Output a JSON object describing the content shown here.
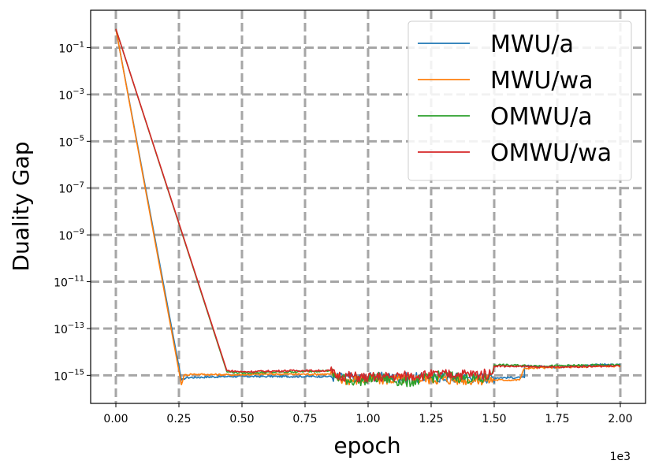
{
  "chart_data": {
    "type": "line",
    "xlabel": "epoch",
    "ylabel": "Duality Gap",
    "x_offset_label": "1e3",
    "x_scale_multiplier": 1000,
    "xlim": [
      -0.1,
      2.1
    ],
    "y_scale": "log",
    "ylim_log10": [
      -16.2,
      0.6
    ],
    "x_ticks": [
      {
        "value": 0.0,
        "label": "0.00"
      },
      {
        "value": 0.25,
        "label": "0.25"
      },
      {
        "value": 0.5,
        "label": "0.50"
      },
      {
        "value": 0.75,
        "label": "0.75"
      },
      {
        "value": 1.0,
        "label": "1.00"
      },
      {
        "value": 1.25,
        "label": "1.25"
      },
      {
        "value": 1.5,
        "label": "1.50"
      },
      {
        "value": 1.75,
        "label": "1.75"
      },
      {
        "value": 2.0,
        "label": "2.00"
      }
    ],
    "y_ticks": [
      {
        "exp": -1,
        "label": "−1"
      },
      {
        "exp": -3,
        "label": "−3"
      },
      {
        "exp": -5,
        "label": "−5"
      },
      {
        "exp": -7,
        "label": "−7"
      },
      {
        "exp": -9,
        "label": "−9"
      },
      {
        "exp": -11,
        "label": "−11"
      },
      {
        "exp": -13,
        "label": "−13"
      },
      {
        "exp": -15,
        "label": "−15"
      }
    ],
    "y_tick_base": "10",
    "grid": true,
    "legend_position": "top-right",
    "series": [
      {
        "name": "MWU/a",
        "color": "#1f77b4",
        "points": [
          [
            0.0,
            -0.2
          ],
          [
            0.26,
            -15.2
          ],
          [
            0.28,
            -15.1
          ],
          [
            0.45,
            -15.05
          ],
          [
            0.6,
            -15.05
          ],
          [
            0.85,
            -15.05
          ],
          [
            0.9,
            -15.1
          ],
          [
            1.0,
            -15.08
          ],
          [
            1.2,
            -15.1
          ],
          [
            1.4,
            -15.1
          ],
          [
            1.62,
            -15.1
          ],
          [
            1.62,
            -14.6
          ],
          [
            1.75,
            -14.65
          ],
          [
            1.9,
            -14.55
          ],
          [
            2.0,
            -14.55
          ]
        ]
      },
      {
        "name": "MWU/wa",
        "color": "#ff7f0e",
        "points": [
          [
            0.0,
            -0.2
          ],
          [
            0.26,
            -15.4
          ],
          [
            0.27,
            -15.0
          ],
          [
            0.3,
            -14.95
          ],
          [
            0.45,
            -14.98
          ],
          [
            0.6,
            -14.95
          ],
          [
            0.85,
            -14.95
          ],
          [
            0.9,
            -15.2
          ],
          [
            1.0,
            -15.2
          ],
          [
            1.2,
            -15.15
          ],
          [
            1.4,
            -15.2
          ],
          [
            1.6,
            -15.2
          ],
          [
            1.62,
            -14.7
          ],
          [
            1.8,
            -14.65
          ],
          [
            2.0,
            -14.6
          ]
        ]
      },
      {
        "name": "OMWU/a",
        "color": "#2ca02c",
        "points": [
          [
            0.0,
            -0.2
          ],
          [
            0.44,
            -14.85
          ],
          [
            0.5,
            -14.9
          ],
          [
            0.7,
            -14.85
          ],
          [
            0.85,
            -14.8
          ],
          [
            0.87,
            -15.1
          ],
          [
            0.95,
            -15.25
          ],
          [
            1.05,
            -15.1
          ],
          [
            1.15,
            -15.3
          ],
          [
            1.3,
            -15.0
          ],
          [
            1.45,
            -15.2
          ],
          [
            1.49,
            -14.95
          ],
          [
            1.5,
            -14.55
          ],
          [
            1.7,
            -14.6
          ],
          [
            2.0,
            -14.55
          ]
        ]
      },
      {
        "name": "OMWU/wa",
        "color": "#d62728",
        "points": [
          [
            0.0,
            -0.2
          ],
          [
            0.44,
            -14.8
          ],
          [
            0.5,
            -14.85
          ],
          [
            0.7,
            -14.8
          ],
          [
            0.85,
            -14.8
          ],
          [
            0.87,
            -15.0
          ],
          [
            1.0,
            -15.1
          ],
          [
            1.2,
            -15.0
          ],
          [
            1.35,
            -14.95
          ],
          [
            1.49,
            -14.95
          ],
          [
            1.5,
            -14.6
          ],
          [
            1.7,
            -14.65
          ],
          [
            2.0,
            -14.6
          ]
        ]
      }
    ]
  }
}
